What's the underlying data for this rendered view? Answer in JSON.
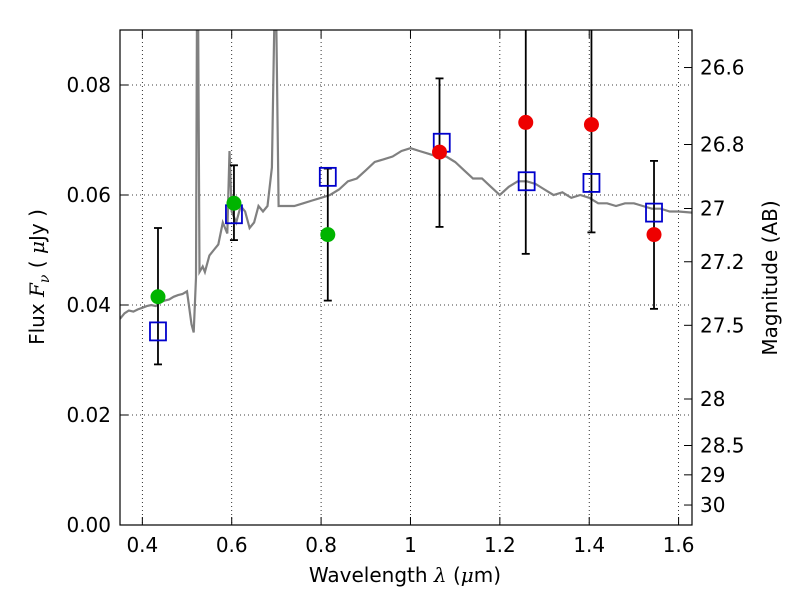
{
  "chart_data": {
    "type": "scatter",
    "xlabel": "Wavelength",
    "xlabel_symbol": "λ",
    "xlabel_unit_open": " (",
    "xlabel_unit_mu": "μ",
    "xlabel_unit_rest": "m)",
    "ylabel": "Flux",
    "ylabel_symbol": "F",
    "ylabel_subscript": "ν",
    "ylabel_unit_open": "( ",
    "ylabel_unit_mu": "μ",
    "ylabel_unit_rest": "Jy )",
    "y2label": "Magnitude (AB)",
    "xlim": [
      0.35,
      1.63
    ],
    "ylim": [
      0.0,
      0.09
    ],
    "x_ticks": [
      0.4,
      0.6,
      0.8,
      1.0,
      1.2,
      1.4,
      1.6
    ],
    "x_tick_labels": [
      "0.4",
      "0.6",
      "0.8",
      "1",
      "1.2",
      "1.4",
      "1.6"
    ],
    "y_ticks": [
      0.0,
      0.02,
      0.04,
      0.06,
      0.08
    ],
    "y_tick_labels": [
      "0.00",
      "0.02",
      "0.04",
      "0.06",
      "0.08"
    ],
    "y2_ticks": [
      26.6,
      26.8,
      27.0,
      27.2,
      27.5,
      28.0,
      28.5,
      29.0,
      30.0
    ],
    "y2_tick_labels": [
      "26.6",
      "26.8",
      "27",
      "27.2",
      "27.5",
      "28",
      "28.5",
      "29",
      "30"
    ],
    "grid": true,
    "colors": {
      "spectrum": "#808080",
      "model": "#0000cc",
      "green": "#00b400",
      "red": "#ee0000",
      "error": "#000000"
    },
    "series": [
      {
        "name": "model-spectrum",
        "kind": "line",
        "points": [
          [
            0.35,
            0.0375
          ],
          [
            0.36,
            0.0385
          ],
          [
            0.37,
            0.039
          ],
          [
            0.38,
            0.0388
          ],
          [
            0.39,
            0.0392
          ],
          [
            0.4,
            0.0395
          ],
          [
            0.41,
            0.0398
          ],
          [
            0.42,
            0.04
          ],
          [
            0.43,
            0.0398
          ],
          [
            0.44,
            0.0405
          ],
          [
            0.45,
            0.0408
          ],
          [
            0.46,
            0.041
          ],
          [
            0.47,
            0.0415
          ],
          [
            0.48,
            0.0418
          ],
          [
            0.49,
            0.042
          ],
          [
            0.5,
            0.0425
          ],
          [
            0.51,
            0.0365
          ],
          [
            0.515,
            0.035
          ],
          [
            0.52,
            0.045
          ],
          [
            0.522,
            0.09
          ],
          [
            0.525,
            0.09
          ],
          [
            0.528,
            0.046
          ],
          [
            0.535,
            0.047
          ],
          [
            0.54,
            0.046
          ],
          [
            0.55,
            0.049
          ],
          [
            0.56,
            0.05
          ],
          [
            0.57,
            0.051
          ],
          [
            0.58,
            0.055
          ],
          [
            0.59,
            0.053
          ],
          [
            0.595,
            0.068
          ],
          [
            0.6,
            0.057
          ],
          [
            0.61,
            0.055
          ],
          [
            0.62,
            0.058
          ],
          [
            0.63,
            0.057
          ],
          [
            0.64,
            0.054
          ],
          [
            0.65,
            0.055
          ],
          [
            0.66,
            0.058
          ],
          [
            0.67,
            0.057
          ],
          [
            0.68,
            0.058
          ],
          [
            0.69,
            0.065
          ],
          [
            0.695,
            0.09
          ],
          [
            0.7,
            0.09
          ],
          [
            0.705,
            0.058
          ],
          [
            0.72,
            0.058
          ],
          [
            0.74,
            0.058
          ],
          [
            0.76,
            0.0585
          ],
          [
            0.78,
            0.059
          ],
          [
            0.8,
            0.0595
          ],
          [
            0.82,
            0.06
          ],
          [
            0.84,
            0.061
          ],
          [
            0.86,
            0.0625
          ],
          [
            0.88,
            0.063
          ],
          [
            0.9,
            0.0645
          ],
          [
            0.92,
            0.066
          ],
          [
            0.94,
            0.0665
          ],
          [
            0.96,
            0.067
          ],
          [
            0.98,
            0.068
          ],
          [
            1.0,
            0.0685
          ],
          [
            1.02,
            0.068
          ],
          [
            1.04,
            0.0675
          ],
          [
            1.06,
            0.067
          ],
          [
            1.08,
            0.067
          ],
          [
            1.1,
            0.066
          ],
          [
            1.12,
            0.0645
          ],
          [
            1.14,
            0.063
          ],
          [
            1.16,
            0.063
          ],
          [
            1.18,
            0.0615
          ],
          [
            1.2,
            0.06
          ],
          [
            1.22,
            0.0615
          ],
          [
            1.24,
            0.0625
          ],
          [
            1.26,
            0.0625
          ],
          [
            1.28,
            0.062
          ],
          [
            1.3,
            0.061
          ],
          [
            1.32,
            0.06
          ],
          [
            1.34,
            0.0605
          ],
          [
            1.36,
            0.0595
          ],
          [
            1.38,
            0.06
          ],
          [
            1.4,
            0.0595
          ],
          [
            1.42,
            0.0585
          ],
          [
            1.44,
            0.0585
          ],
          [
            1.46,
            0.058
          ],
          [
            1.48,
            0.0585
          ],
          [
            1.5,
            0.0585
          ],
          [
            1.52,
            0.058
          ],
          [
            1.54,
            0.0575
          ],
          [
            1.56,
            0.0575
          ],
          [
            1.58,
            0.057
          ],
          [
            1.6,
            0.057
          ],
          [
            1.63,
            0.0568
          ]
        ]
      },
      {
        "name": "model-photometry",
        "kind": "open-square",
        "x": [
          0.435,
          0.605,
          0.815,
          1.07,
          1.26,
          1.405,
          1.545
        ],
        "y": [
          0.0352,
          0.0565,
          0.0633,
          0.0695,
          0.0625,
          0.0622,
          0.0568
        ]
      },
      {
        "name": "observed-detections",
        "kind": "filled-circle",
        "color_key": "green",
        "x": [
          0.435,
          0.605,
          0.815
        ],
        "y": [
          0.0415,
          0.0585,
          0.0528
        ],
        "yerr_low": [
          0.0292,
          0.0518,
          0.0408
        ],
        "yerr_high": [
          0.054,
          0.0654,
          0.0648
        ]
      },
      {
        "name": "observed-fit",
        "kind": "filled-circle",
        "color_key": "red",
        "x": [
          1.065,
          1.258,
          1.405,
          1.545
        ],
        "y": [
          0.0678,
          0.0732,
          0.0728,
          0.0528
        ],
        "yerr_low": [
          0.0542,
          0.0493,
          0.0532,
          0.0393
        ],
        "yerr_high": [
          0.0812,
          0.09,
          0.09,
          0.0662
        ]
      }
    ]
  }
}
